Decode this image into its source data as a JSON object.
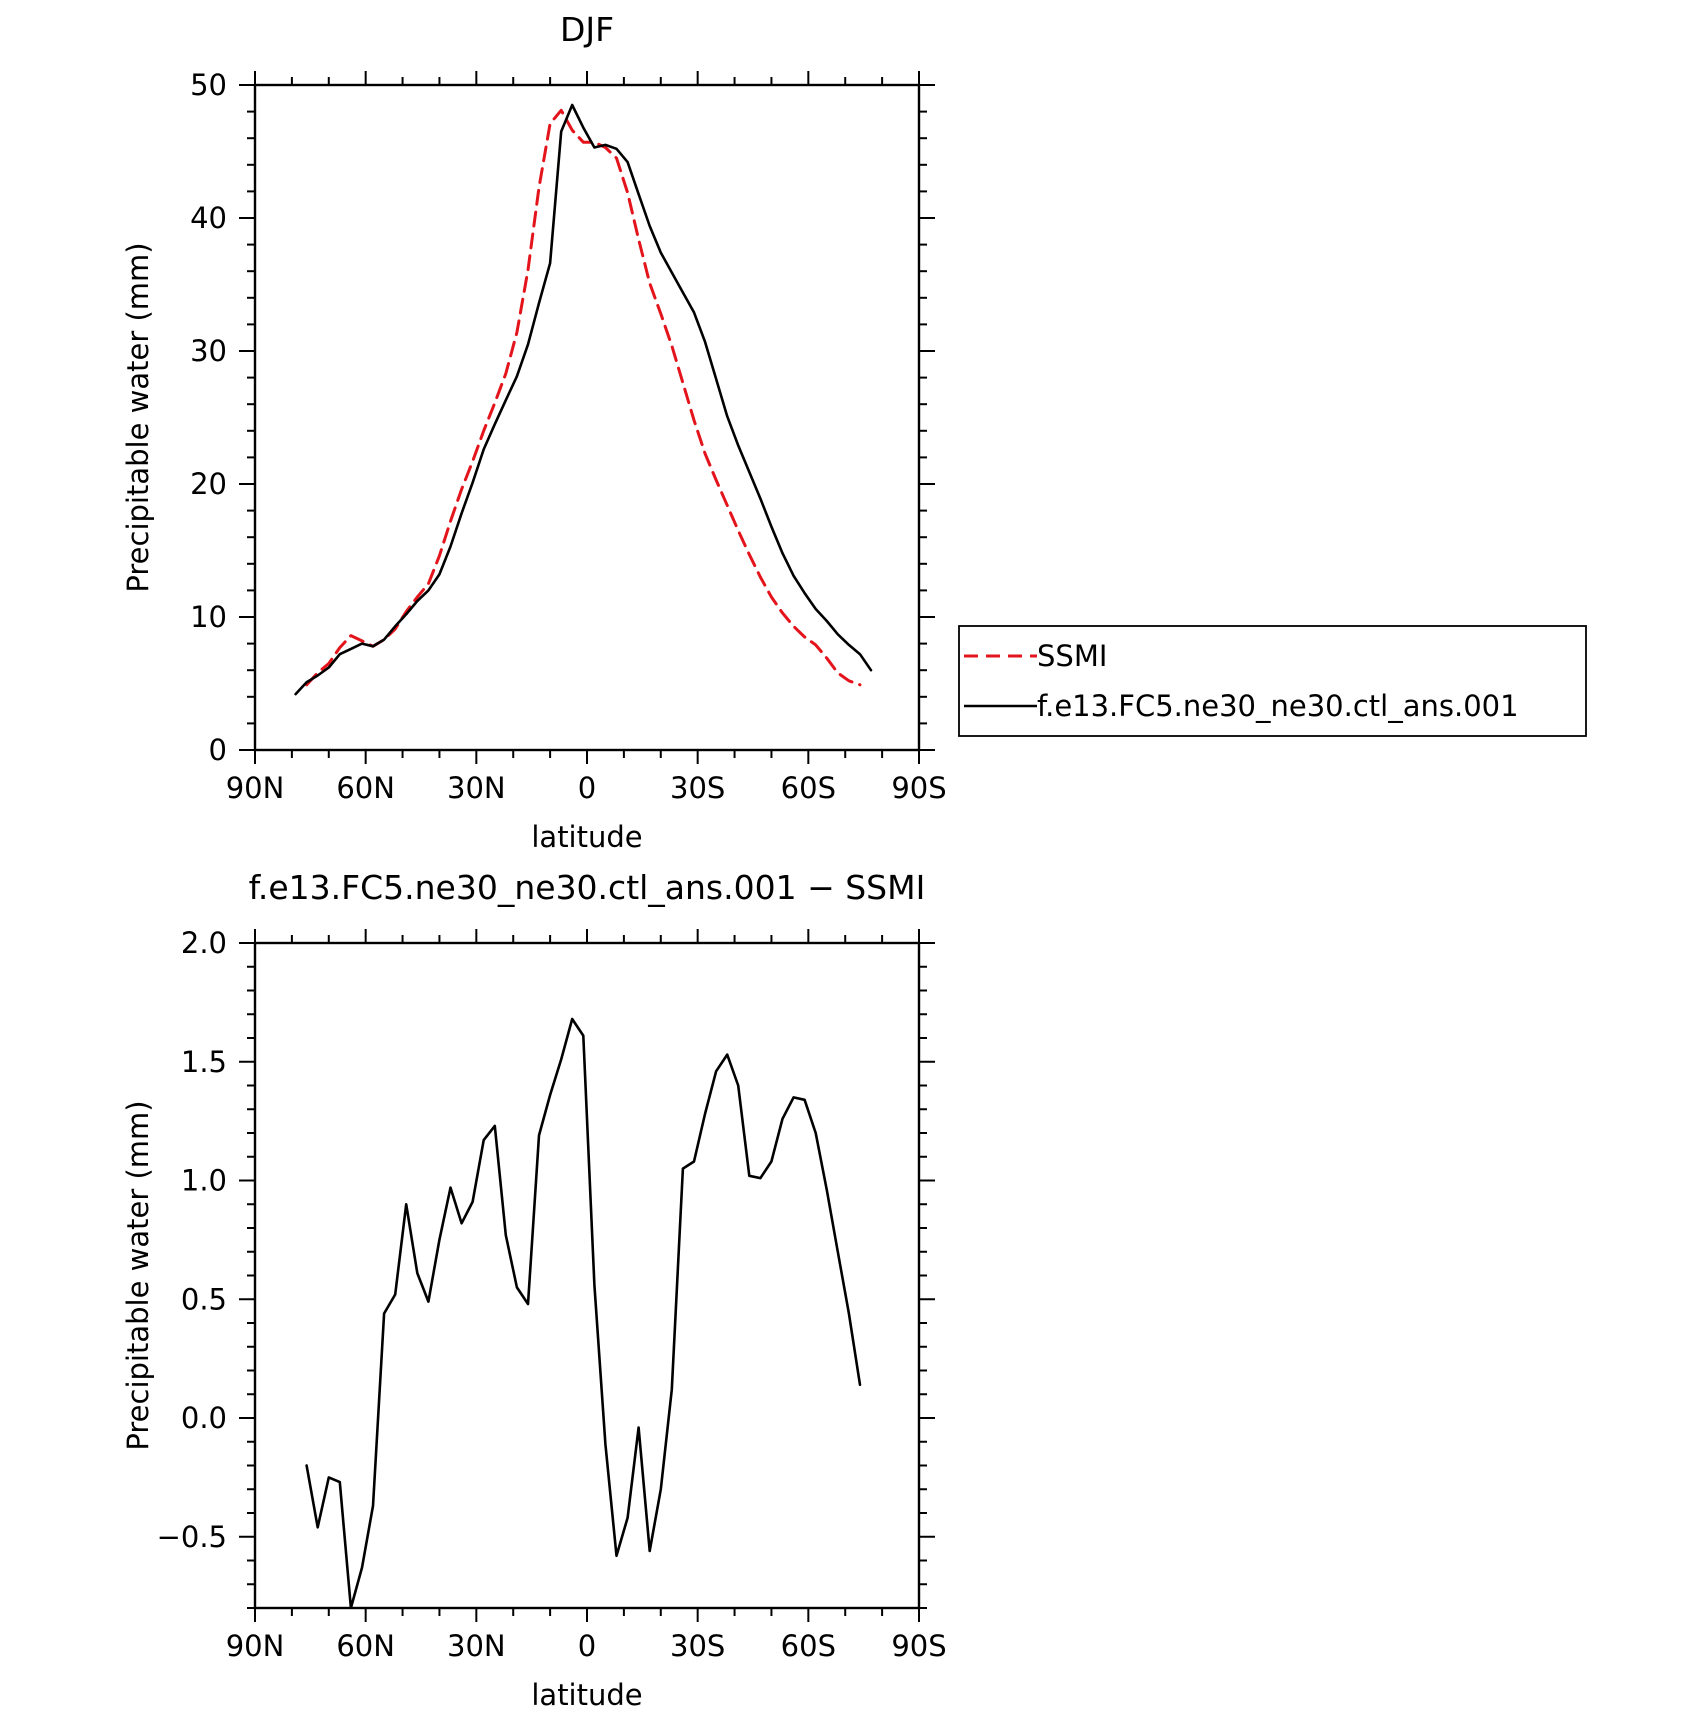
{
  "colors": {
    "ssmi": "#e3141b",
    "model": "#000000",
    "axis": "#000000",
    "background": "#ffffff"
  },
  "chart_data": [
    {
      "type": "line",
      "title": "DJF",
      "xlabel": "latitude",
      "ylabel": "Precipitable water (mm)",
      "xlim": [
        90,
        -90
      ],
      "ylim": [
        0,
        50
      ],
      "x_ticks": [
        {
          "value": 90,
          "label": "90N"
        },
        {
          "value": 60,
          "label": "60N"
        },
        {
          "value": 30,
          "label": "30N"
        },
        {
          "value": 0,
          "label": "0"
        },
        {
          "value": -30,
          "label": "30S"
        },
        {
          "value": -60,
          "label": "60S"
        },
        {
          "value": -90,
          "label": "90S"
        }
      ],
      "y_ticks": [
        {
          "value": 0,
          "label": "0"
        },
        {
          "value": 10,
          "label": "10"
        },
        {
          "value": 20,
          "label": "20"
        },
        {
          "value": 30,
          "label": "30"
        },
        {
          "value": 40,
          "label": "40"
        },
        {
          "value": 50,
          "label": "50"
        }
      ],
      "legend": "right",
      "grid": false,
      "series": [
        {
          "name": "SSMI",
          "style": "dashed",
          "color": "#e3141b",
          "x": [
            76,
            73,
            70,
            67,
            64,
            61,
            58,
            55,
            52,
            49,
            46,
            43,
            40,
            37,
            34,
            31,
            28,
            25,
            22,
            19,
            16,
            13,
            10,
            7,
            4,
            1,
            -2,
            -5,
            -8,
            -11,
            -14,
            -17,
            -20,
            -23,
            -26,
            -29,
            -32,
            -35,
            -38,
            -41,
            -44,
            -47,
            -50,
            -53,
            -56,
            -59,
            -62,
            -65,
            -68,
            -71,
            -74
          ],
          "y": [
            4.9,
            5.8,
            6.5,
            7.7,
            8.6,
            8.2,
            7.8,
            8.3,
            9.1,
            10.4,
            11.5,
            12.5,
            14.6,
            17.2,
            19.6,
            21.7,
            24.0,
            26.1,
            28.3,
            31.4,
            36.1,
            42.3,
            47.1,
            48.1,
            46.6,
            45.7,
            45.7,
            45.3,
            44.5,
            41.9,
            38.4,
            35.1,
            32.8,
            30.4,
            27.6,
            24.8,
            22.3,
            20.3,
            18.4,
            16.5,
            14.7,
            13.0,
            11.5,
            10.3,
            9.3,
            8.5,
            7.9,
            6.9,
            5.8,
            5.2,
            4.9
          ]
        },
        {
          "name": "f.e13.FC5.ne30_ne30.ctl_ans.001",
          "style": "solid",
          "color": "#000000",
          "x": [
            79,
            76,
            73,
            70,
            67,
            64,
            61,
            58,
            55,
            52,
            49,
            46,
            43,
            40,
            37,
            34,
            31,
            28,
            25,
            22,
            19,
            16,
            13,
            10,
            7,
            4,
            1,
            -2,
            -5,
            -8,
            -11,
            -14,
            -17,
            -20,
            -23,
            -26,
            -29,
            -32,
            -35,
            -38,
            -41,
            -44,
            -47,
            -50,
            -53,
            -56,
            -59,
            -62,
            -65,
            -68,
            -71,
            -74,
            -77
          ],
          "y": [
            4.2,
            5.1,
            5.6,
            6.2,
            7.2,
            7.6,
            8.0,
            7.8,
            8.3,
            9.3,
            10.2,
            11.2,
            12.0,
            13.2,
            15.3,
            17.8,
            20.1,
            22.6,
            24.5,
            26.3,
            28.1,
            30.5,
            33.6,
            36.6,
            46.5,
            48.5,
            46.8,
            45.3,
            45.5,
            45.2,
            44.2,
            41.8,
            39.4,
            37.4,
            35.9,
            34.4,
            32.9,
            30.7,
            27.9,
            25.1,
            22.9,
            20.9,
            18.9,
            16.8,
            14.8,
            13.1,
            11.8,
            10.6,
            9.7,
            8.7,
            7.9,
            7.2,
            6.0
          ]
        }
      ]
    },
    {
      "type": "line",
      "title": "f.e13.FC5.ne30_ne30.ctl_ans.001 - SSMI",
      "xlabel": "latitude",
      "ylabel": "Precipitable water (mm)",
      "xlim": [
        90,
        -90
      ],
      "ylim": [
        -0.8,
        2.0
      ],
      "x_ticks": [
        {
          "value": 90,
          "label": "90N"
        },
        {
          "value": 60,
          "label": "60N"
        },
        {
          "value": 30,
          "label": "30N"
        },
        {
          "value": 0,
          "label": "0"
        },
        {
          "value": -30,
          "label": "30S"
        },
        {
          "value": -60,
          "label": "60S"
        },
        {
          "value": -90,
          "label": "90S"
        }
      ],
      "y_ticks": [
        {
          "value": -0.5,
          "label": "-0.5"
        },
        {
          "value": 0.0,
          "label": "0.0"
        },
        {
          "value": 0.5,
          "label": "0.5"
        },
        {
          "value": 1.0,
          "label": "1.0"
        },
        {
          "value": 1.5,
          "label": "1.5"
        },
        {
          "value": 2.0,
          "label": "2.0"
        }
      ],
      "grid": false,
      "series": [
        {
          "style": "solid",
          "color": "#000000",
          "x": [
            76,
            73,
            70,
            67,
            64,
            61,
            58,
            55,
            52,
            49,
            46,
            43,
            40,
            37,
            34,
            31,
            28,
            25,
            22,
            19,
            16,
            13,
            10,
            7,
            4,
            1,
            -2,
            -5,
            -8,
            -11,
            -14,
            -17,
            -20,
            -23,
            -26,
            -29,
            -32,
            -35,
            -38,
            -41,
            -44,
            -47,
            -50,
            -53,
            -56,
            -59,
            -62,
            -65,
            -68,
            -71,
            -74
          ],
          "y": [
            -0.2,
            -0.46,
            -0.25,
            -0.27,
            -0.8,
            -0.63,
            -0.37,
            0.44,
            0.52,
            0.9,
            0.61,
            0.49,
            0.75,
            0.97,
            0.82,
            0.91,
            1.17,
            1.23,
            0.77,
            0.55,
            0.48,
            1.19,
            1.36,
            1.51,
            1.68,
            1.61,
            0.56,
            -0.11,
            -0.58,
            -0.42,
            -0.04,
            -0.56,
            -0.3,
            0.12,
            1.05,
            1.08,
            1.28,
            1.46,
            1.53,
            1.4,
            1.02,
            1.01,
            1.08,
            1.26,
            1.35,
            1.34,
            1.2,
            0.96,
            0.7,
            0.44,
            0.14
          ]
        }
      ]
    }
  ]
}
